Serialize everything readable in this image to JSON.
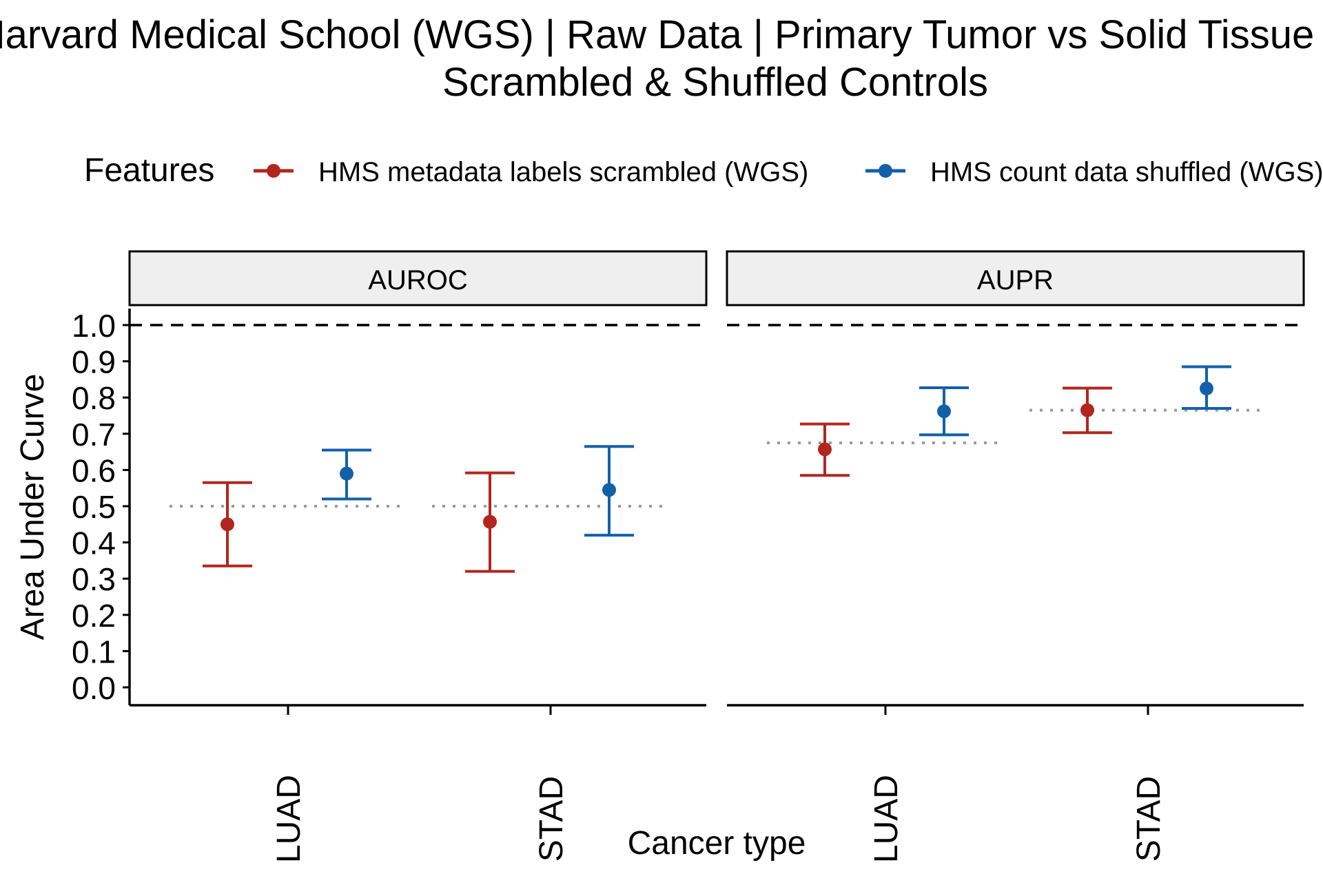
{
  "chart_data": {
    "type": "errorbar",
    "title_line1": "Harvard Medical School (WGS) | Raw Data | Primary Tumor vs Solid Tissue Normal",
    "title_line2": "Scrambled & Shuffled Controls",
    "legend_title": "Features",
    "legend_placement": "top",
    "series": [
      {
        "name": "HMS metadata labels scrambled (WGS)",
        "color": "#b2261f"
      },
      {
        "name": "HMS count data shuffled (WGS)",
        "color": "#1260aa"
      }
    ],
    "xlabel": "Cancer type",
    "ylabel": "Area Under Curve",
    "ylim": [
      0.0,
      1.0
    ],
    "yticks": [
      "0.0",
      "0.1",
      "0.2",
      "0.3",
      "0.4",
      "0.5",
      "0.6",
      "0.7",
      "0.8",
      "0.9",
      "1.0"
    ],
    "reference_line": 1.0,
    "categories": [
      "LUAD",
      "STAD"
    ],
    "panels": [
      {
        "name": "AUROC",
        "baselines": [
          0.5,
          0.5
        ],
        "points": [
          {
            "category": "LUAD",
            "series": 0,
            "value": 0.45,
            "low": 0.335,
            "high": 0.565
          },
          {
            "category": "LUAD",
            "series": 1,
            "value": 0.59,
            "low": 0.52,
            "high": 0.655
          },
          {
            "category": "STAD",
            "series": 0,
            "value": 0.457,
            "low": 0.32,
            "high": 0.592
          },
          {
            "category": "STAD",
            "series": 1,
            "value": 0.545,
            "low": 0.42,
            "high": 0.665
          }
        ]
      },
      {
        "name": "AUPR",
        "baselines": [
          0.675,
          0.765
        ],
        "points": [
          {
            "category": "LUAD",
            "series": 0,
            "value": 0.657,
            "low": 0.585,
            "high": 0.727
          },
          {
            "category": "LUAD",
            "series": 1,
            "value": 0.762,
            "low": 0.697,
            "high": 0.827
          },
          {
            "category": "STAD",
            "series": 0,
            "value": 0.765,
            "low": 0.703,
            "high": 0.826
          },
          {
            "category": "STAD",
            "series": 1,
            "value": 0.825,
            "low": 0.77,
            "high": 0.885
          }
        ]
      }
    ],
    "grid": false
  }
}
